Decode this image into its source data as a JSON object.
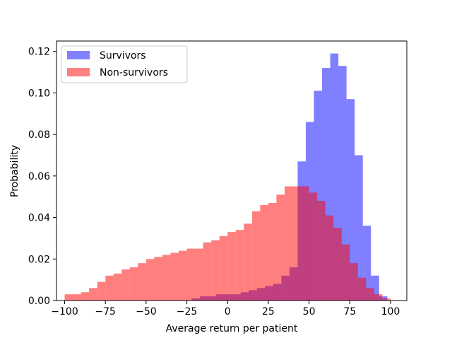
{
  "chart_data": {
    "type": "histogram",
    "title": "",
    "xlabel": "Average return per patient",
    "ylabel": "Probability",
    "xlim": [
      -105,
      110
    ],
    "ylim": [
      0,
      0.125
    ],
    "xticks": [
      -100,
      -75,
      -50,
      -25,
      0,
      25,
      50,
      75,
      100
    ],
    "xtick_labels": [
      "−100",
      "−75",
      "−50",
      "−25",
      "0",
      "25",
      "50",
      "75",
      "100"
    ],
    "yticks": [
      0,
      0.02,
      0.04,
      0.06,
      0.08,
      0.1,
      0.12
    ],
    "ytick_labels": [
      "0.00",
      "0.02",
      "0.04",
      "0.06",
      "0.08",
      "0.10",
      "0.12"
    ],
    "legend_position": "upper-left",
    "grid": false,
    "series": [
      {
        "name": "Survivors",
        "color": "#8080ff",
        "edges": [
          -22,
          -17,
          -12,
          -7,
          -2,
          3,
          8,
          13,
          18,
          23,
          28,
          33,
          38,
          43,
          48,
          53,
          58,
          63,
          68,
          73,
          78,
          83,
          88,
          93,
          98,
          101
        ],
        "values": [
          0.001,
          0.002,
          0.002,
          0.003,
          0.003,
          0.003,
          0.004,
          0.005,
          0.006,
          0.007,
          0.008,
          0.012,
          0.016,
          0.067,
          0.086,
          0.101,
          0.112,
          0.119,
          0.113,
          0.097,
          0.07,
          0.036,
          0.012,
          0.002,
          0.0
        ]
      },
      {
        "name": "Non-survivors",
        "color": "#ff8080",
        "edges": [
          -100,
          -95,
          -90,
          -85,
          -80,
          -75,
          -70,
          -65,
          -60,
          -55,
          -50,
          -45,
          -40,
          -35,
          -30,
          -25,
          -20,
          -15,
          -10,
          -5,
          0,
          5,
          10,
          15,
          20,
          25,
          30,
          35,
          40,
          45,
          50,
          55,
          60,
          65,
          70,
          75,
          80,
          85,
          90,
          95,
          100
        ],
        "values": [
          0.003,
          0.003,
          0.004,
          0.006,
          0.009,
          0.012,
          0.013,
          0.015,
          0.016,
          0.018,
          0.02,
          0.021,
          0.022,
          0.023,
          0.024,
          0.025,
          0.025,
          0.028,
          0.029,
          0.031,
          0.033,
          0.034,
          0.037,
          0.043,
          0.046,
          0.047,
          0.051,
          0.055,
          0.055,
          0.055,
          0.052,
          0.048,
          0.041,
          0.035,
          0.027,
          0.018,
          0.011,
          0.006,
          0.003,
          0.001
        ]
      }
    ]
  },
  "legend": {
    "items": [
      {
        "label": "Survivors",
        "color": "#8080ff"
      },
      {
        "label": "Non-survivors",
        "color": "#ff8080"
      }
    ]
  }
}
